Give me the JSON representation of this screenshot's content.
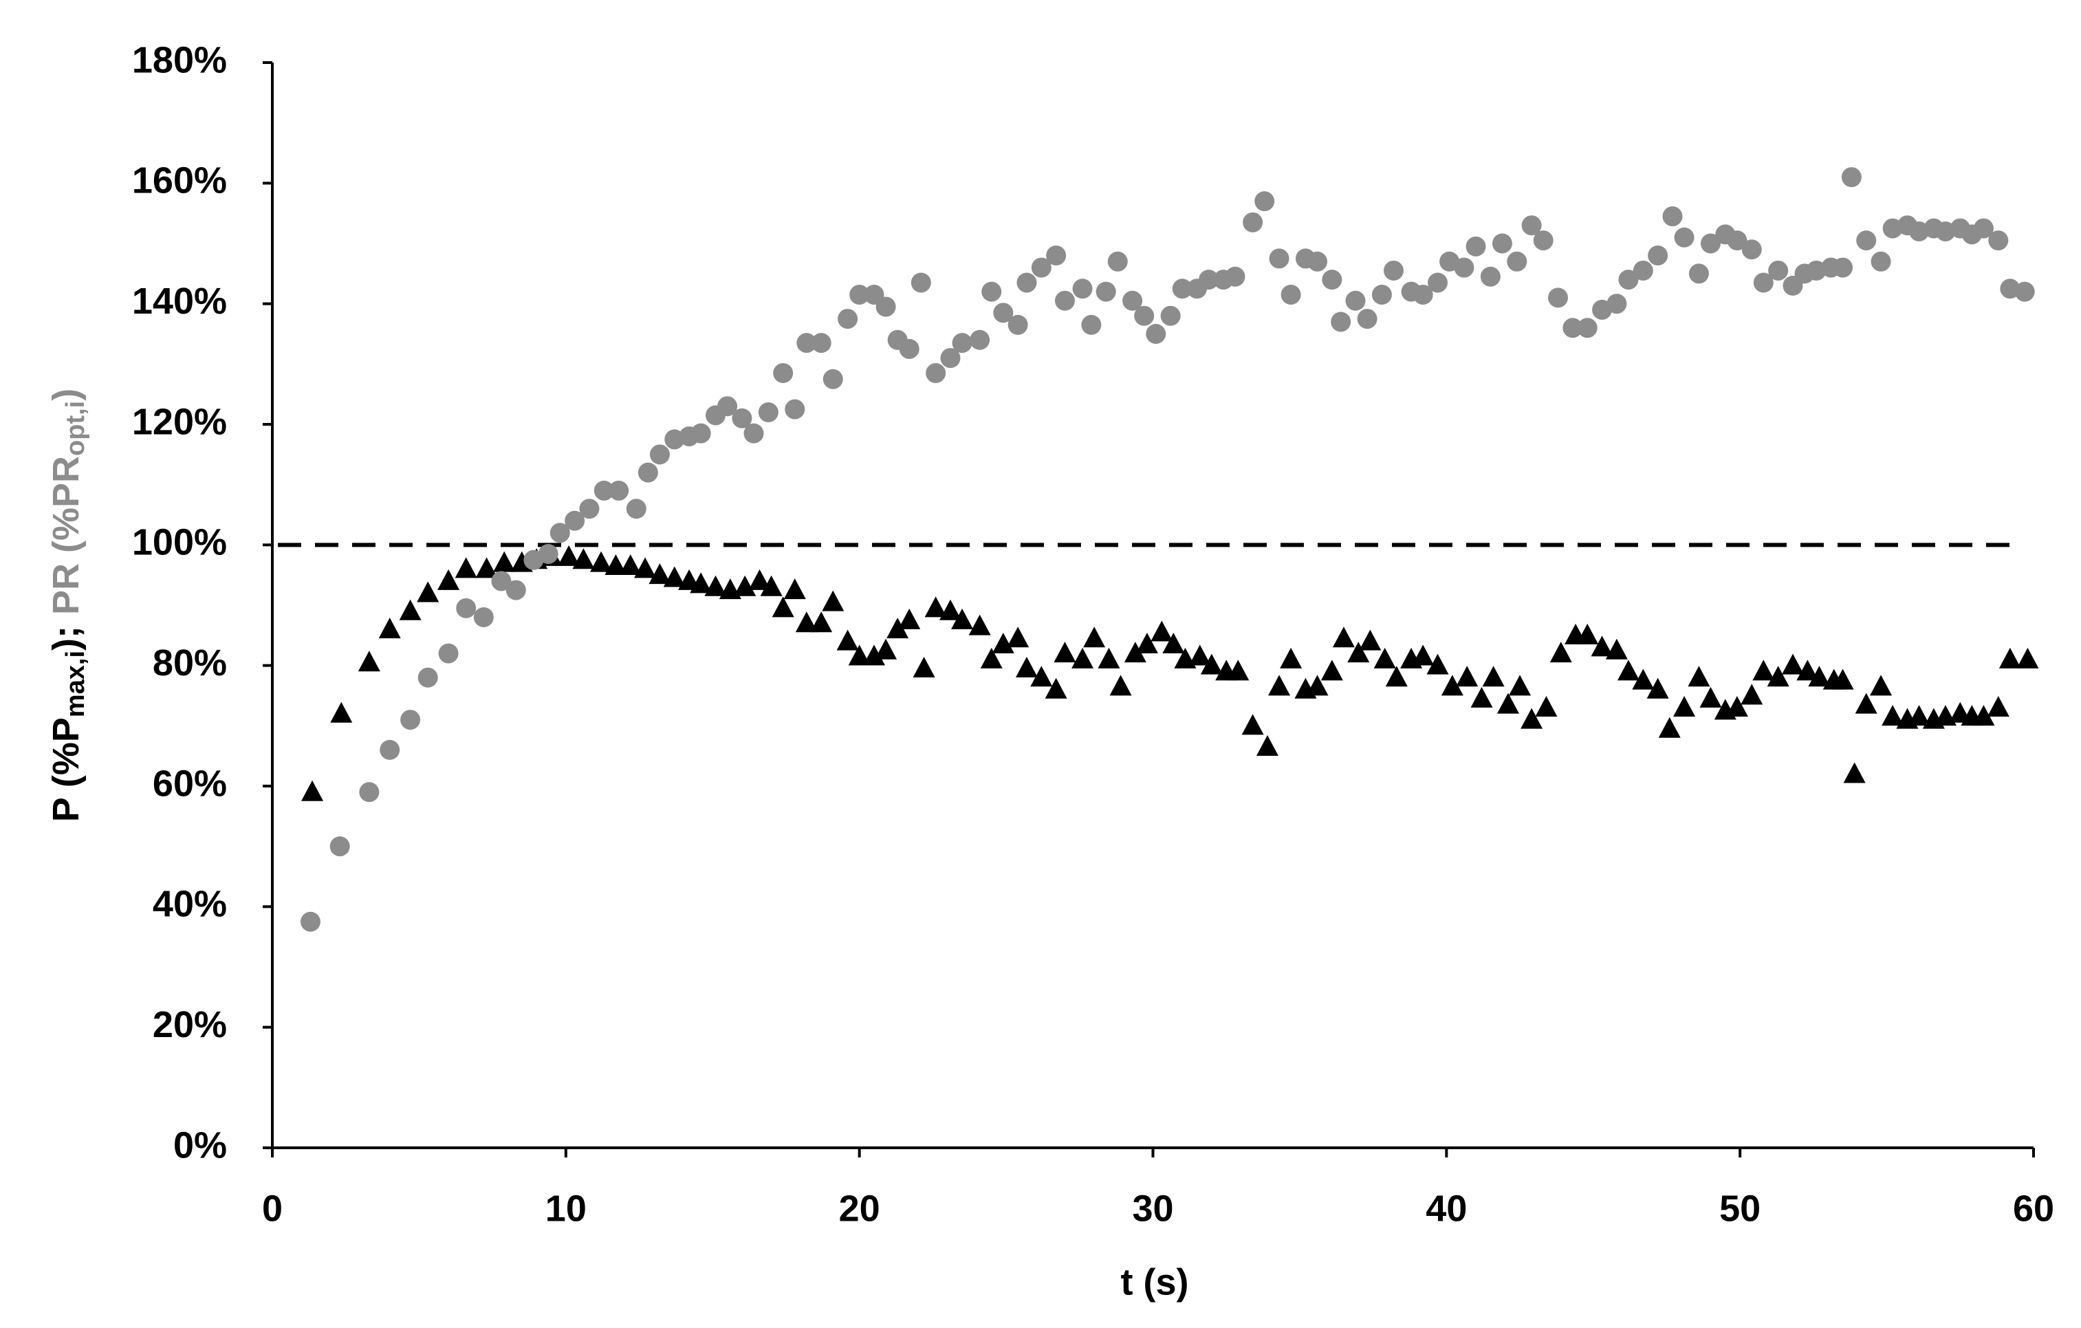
{
  "chart_data": {
    "type": "scatter",
    "xlabel": "t (s)",
    "ylabel": {
      "p": "P (%P",
      "p_sub": "max,i",
      "p_end": ");",
      "pr": "PR (%PR",
      "pr_sub": "opt,i",
      "pr_end": ")",
      "pr_color": "#8c8c8c"
    },
    "xlim": [
      0,
      60
    ],
    "xticks": [
      0,
      10,
      20,
      30,
      40,
      50,
      60
    ],
    "ylim": [
      0,
      180
    ],
    "yticks": [
      {
        "value": 0,
        "label": "0%"
      },
      {
        "value": 20,
        "label": "20%"
      },
      {
        "value": 40,
        "label": "40%"
      },
      {
        "value": 60,
        "label": "60%"
      },
      {
        "value": 80,
        "label": "80%"
      },
      {
        "value": 100,
        "label": "100%"
      },
      {
        "value": 120,
        "label": "120%"
      },
      {
        "value": 140,
        "label": "140%"
      },
      {
        "value": 160,
        "label": "160%"
      },
      {
        "value": 180,
        "label": "180%"
      }
    ],
    "grid": false,
    "reference_line": {
      "value": 100,
      "dashed": true,
      "color": "#000000"
    },
    "series": [
      {
        "color": "#000000",
        "marker": "triangle",
        "x": [
          1.36,
          2.35,
          3.3,
          4.0,
          4.7,
          5.3,
          6.0,
          6.6,
          7.3,
          7.9,
          8.5,
          9.0,
          9.5,
          10.1,
          10.6,
          11.2,
          11.7,
          12.2,
          12.7,
          13.2,
          13.7,
          14.2,
          14.6,
          15.1,
          15.6,
          16.1,
          16.6,
          17.0,
          17.4,
          17.8,
          18.2,
          18.7,
          19.1,
          19.6,
          20.0,
          20.5,
          20.9,
          21.3,
          21.7,
          22.2,
          22.6,
          23.1,
          23.5,
          24.1,
          24.5,
          24.9,
          25.4,
          25.7,
          26.2,
          26.7,
          27.0,
          27.6,
          28.0,
          28.5,
          28.9,
          29.4,
          29.8,
          30.3,
          30.7,
          31.1,
          31.6,
          32.0,
          32.5,
          32.9,
          33.4,
          33.9,
          34.3,
          34.7,
          35.2,
          35.6,
          36.1,
          36.5,
          37.0,
          37.4,
          37.9,
          38.3,
          38.8,
          39.2,
          39.7,
          40.2,
          40.7,
          41.2,
          41.6,
          42.1,
          42.5,
          42.9,
          43.4,
          43.9,
          44.4,
          44.8,
          45.3,
          45.8,
          46.2,
          46.7,
          47.2,
          47.6,
          48.1,
          48.6,
          49.0,
          49.5,
          49.9,
          50.4,
          50.8,
          51.3,
          51.8,
          52.3,
          52.7,
          53.2,
          53.5,
          53.9,
          54.3,
          54.8,
          55.2,
          55.7,
          56.1,
          56.6,
          57.0,
          57.5,
          57.9,
          58.3,
          58.8,
          59.2,
          59.8
        ],
        "values": [
          59,
          72,
          80.5,
          86,
          89,
          92,
          94,
          96,
          96,
          97,
          97,
          97.5,
          98,
          98,
          97.5,
          97,
          96.5,
          96.5,
          96,
          95,
          94.5,
          94,
          93.5,
          93,
          92.5,
          93,
          94,
          93,
          89.5,
          92.5,
          87,
          87,
          90.5,
          84,
          81.5,
          81.5,
          82.5,
          86,
          87.5,
          79.5,
          89.5,
          89,
          87.5,
          86.5,
          81,
          83.5,
          84.5,
          79.5,
          78,
          76,
          82,
          81,
          84.5,
          81,
          76.5,
          82,
          83.5,
          85.5,
          83.5,
          81,
          81.5,
          80,
          79,
          79,
          70,
          66.5,
          76.5,
          81,
          76,
          76.5,
          79,
          84.5,
          82,
          84,
          81,
          78,
          81,
          81.5,
          80,
          76.5,
          78,
          74.5,
          78,
          73.5,
          76.5,
          71,
          73,
          82,
          85,
          85,
          83,
          82.5,
          79,
          77.5,
          76,
          69.5,
          73,
          78,
          74.5,
          72.5,
          73,
          75,
          79,
          78,
          80,
          79,
          78,
          77.5,
          77.5,
          62,
          73.5,
          76.5,
          71.5,
          71,
          71.5,
          71,
          71.5,
          72,
          71.5,
          71.5,
          73,
          81,
          81
        ]
      },
      {
        "color": "#8c8c8c",
        "marker": "circle",
        "x": [
          1.3,
          2.3,
          3.3,
          4.0,
          4.7,
          5.3,
          6.0,
          6.6,
          7.2,
          7.8,
          8.3,
          8.9,
          9.4,
          9.8,
          10.3,
          10.8,
          11.3,
          11.8,
          12.4,
          12.8,
          13.2,
          13.7,
          14.2,
          14.6,
          15.1,
          15.5,
          16.0,
          16.4,
          16.9,
          17.4,
          17.8,
          18.2,
          18.7,
          19.1,
          19.6,
          20.0,
          20.5,
          20.9,
          21.3,
          21.7,
          22.1,
          22.6,
          23.1,
          23.5,
          24.1,
          24.5,
          24.9,
          25.4,
          25.7,
          26.2,
          26.7,
          27.0,
          27.6,
          27.9,
          28.4,
          28.8,
          29.3,
          29.7,
          30.1,
          30.6,
          31.0,
          31.5,
          31.9,
          32.4,
          32.8,
          33.4,
          33.8,
          34.3,
          34.7,
          35.2,
          35.6,
          36.1,
          36.4,
          36.9,
          37.3,
          37.8,
          38.2,
          38.8,
          39.2,
          39.7,
          40.1,
          40.6,
          41.0,
          41.5,
          41.9,
          42.4,
          42.9,
          43.3,
          43.8,
          44.3,
          44.8,
          45.3,
          45.8,
          46.2,
          46.7,
          47.2,
          47.7,
          48.1,
          48.6,
          49.0,
          49.5,
          49.9,
          50.4,
          50.8,
          51.3,
          51.8,
          52.2,
          52.6,
          53.1,
          53.5,
          53.8,
          54.3,
          54.8,
          55.2,
          55.7,
          56.1,
          56.6,
          57.0,
          57.5,
          57.9,
          58.3,
          58.8,
          59.2,
          59.7
        ],
        "values": [
          37.5,
          50,
          59,
          66,
          71,
          78,
          82,
          89.5,
          88,
          94,
          92.5,
          97.5,
          98.5,
          102,
          104,
          106,
          109,
          109,
          106,
          112,
          115,
          117.5,
          118,
          118.5,
          121.5,
          123,
          121,
          118.5,
          122,
          128.5,
          122.5,
          133.5,
          133.5,
          127.5,
          137.5,
          141.5,
          141.5,
          139.5,
          134,
          132.5,
          143.5,
          128.5,
          131,
          133.5,
          134,
          142,
          138.5,
          136.5,
          143.5,
          146,
          148,
          140.5,
          142.5,
          136.5,
          142,
          147,
          140.5,
          138,
          135,
          138,
          142.5,
          142.5,
          144,
          144,
          144.5,
          153.5,
          157,
          147.5,
          141.5,
          147.5,
          147,
          144,
          137,
          140.5,
          137.5,
          141.5,
          145.5,
          142,
          141.5,
          143.5,
          147,
          146,
          149.5,
          144.5,
          150,
          147,
          153,
          150.5,
          141,
          136,
          136,
          139,
          140,
          144,
          145.5,
          148,
          154.5,
          151,
          145,
          150,
          151.5,
          150.5,
          149,
          143.5,
          145.5,
          143,
          145,
          145.5,
          146,
          146,
          161,
          150.5,
          147,
          152.5,
          153,
          152,
          152.5,
          152,
          152.5,
          151.5,
          152.5,
          150.5,
          142.5,
          142
        ]
      }
    ]
  }
}
